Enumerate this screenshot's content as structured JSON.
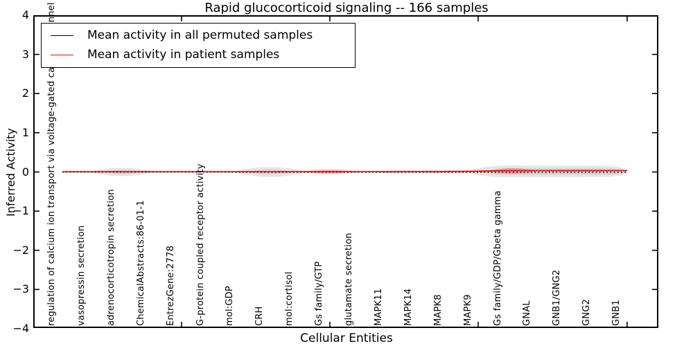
{
  "title": "Rapid glucocorticoid signaling -- 166 samples",
  "axes": {
    "xlabel": "Cellular Entities",
    "ylabel": "Inferred Activity",
    "yticks": [
      "4",
      "3",
      "2",
      "1",
      "0",
      "−1",
      "−2",
      "−3",
      "−4"
    ]
  },
  "legend": {
    "items": [
      {
        "label": "Mean activity in all permuted samples",
        "color": "#000000"
      },
      {
        "label": "Mean activity in patient samples",
        "color": "#ff0000"
      }
    ]
  },
  "colors": {
    "permuted_line": "#000000",
    "patient_line": "#ff0000",
    "band_gray": "#bdbdbd",
    "band_red": "#ff0000"
  },
  "chart_data": {
    "type": "line",
    "title": "Rapid glucocorticoid signaling -- 166 samples",
    "xlabel": "Cellular Entities",
    "ylabel": "Inferred Activity",
    "ylim": [
      -4,
      4
    ],
    "yticks": [
      -4,
      -3,
      -2,
      -1,
      0,
      1,
      2,
      3,
      4
    ],
    "grid": false,
    "legend_position": "upper left",
    "categories": [
      "regulation of calcium ion transport via voltage-gated calcium channel activity",
      "vasopressin secretion",
      "adrenocorticotropin secretion",
      "ChemicalAbstracts:86-01-1",
      "EntrezGene:2778",
      "G-protein coupled receptor activity",
      "mol:GDP",
      "CRH",
      "mol:cortisol",
      "Gs family/GTP",
      "glutamate secretion",
      "MAPK11",
      "MAPK14",
      "MAPK8",
      "MAPK9",
      "Gs family/GDP/Gbeta gamma",
      "GNAL",
      "GNB1/GNG2",
      "GNG2",
      "GNB1"
    ],
    "series": [
      {
        "name": "Mean activity in all permuted samples",
        "color": "#000000",
        "style": "dotted",
        "values": [
          0.0,
          0.0,
          0.0,
          0.0,
          0.0,
          0.0,
          0.0,
          0.0,
          0.0,
          0.0,
          0.0,
          0.0,
          0.0,
          0.0,
          0.0,
          0.0,
          -0.01,
          -0.01,
          -0.01,
          -0.01
        ]
      },
      {
        "name": "Mean activity in patient samples",
        "color": "#ff0000",
        "style": "solid",
        "values": [
          0.0,
          0.0,
          0.0,
          0.0,
          0.0,
          0.0,
          0.0,
          0.0,
          0.0,
          0.01,
          0.0,
          0.0,
          0.0,
          0.0,
          0.01,
          0.03,
          0.03,
          0.03,
          0.03,
          0.03
        ]
      }
    ],
    "uncertainty_bands": [
      {
        "series": "Mean activity in all permuted samples",
        "color": "#bdbdbd",
        "half_widths": [
          0.0,
          0.01,
          0.1,
          0.01,
          0.01,
          0.02,
          0.03,
          0.12,
          0.03,
          0.05,
          0.04,
          0.04,
          0.04,
          0.04,
          0.06,
          0.13,
          0.11,
          0.11,
          0.11,
          0.11
        ]
      },
      {
        "series": "Mean activity in patient samples",
        "color": "#ff0000",
        "half_widths": [
          0.0,
          0.0,
          0.0,
          0.0,
          0.0,
          0.0,
          0.0,
          0.0,
          0.0,
          0.07,
          0.0,
          0.0,
          0.0,
          0.0,
          0.02,
          0.08,
          0.04,
          0.04,
          0.04,
          0.04
        ]
      }
    ]
  }
}
